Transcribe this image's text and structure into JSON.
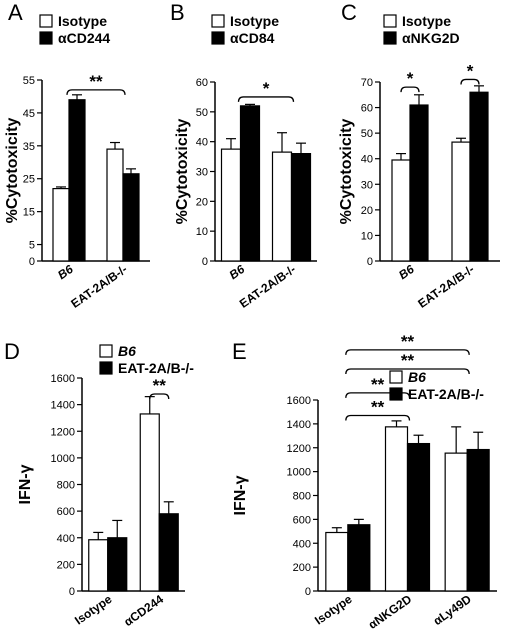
{
  "chart_data": [
    {
      "panel": "A",
      "type": "bar",
      "ylabel": "%Cytotoxicity",
      "ylim": [
        0,
        55
      ],
      "yticks": [
        0,
        5,
        15,
        25,
        35,
        45,
        55
      ],
      "categories": [
        "B6",
        "EAT-2A/B-/-"
      ],
      "category_italic": [
        true,
        false
      ],
      "series": [
        {
          "name": "Isotype",
          "values": [
            22,
            34
          ],
          "errors": [
            0.5,
            2
          ],
          "fill": "#ffffff"
        },
        {
          "name": "αCD244",
          "values": [
            49,
            26.5
          ],
          "errors": [
            1.5,
            1.5
          ],
          "fill": "#000000"
        }
      ],
      "significance": [
        {
          "label": "**",
          "from_cat": 0,
          "to_cat": 1,
          "level": 52
        }
      ]
    },
    {
      "panel": "B",
      "type": "bar",
      "ylabel": "%Cytotoxicity",
      "ylim": [
        0,
        60
      ],
      "yticks": [
        0,
        10,
        20,
        30,
        40,
        50,
        60
      ],
      "categories": [
        "B6",
        "EAT-2A/B-/-"
      ],
      "category_italic": [
        true,
        false
      ],
      "series": [
        {
          "name": "Isotype",
          "values": [
            37.5,
            36.5
          ],
          "errors": [
            3.5,
            6.5
          ],
          "fill": "#ffffff"
        },
        {
          "name": "αCD84",
          "values": [
            52,
            36
          ],
          "errors": [
            0.5,
            3.5
          ],
          "fill": "#000000"
        }
      ],
      "significance": [
        {
          "label": "*",
          "from_cat": 0,
          "to_cat": 1,
          "level": 55
        }
      ]
    },
    {
      "panel": "C",
      "type": "bar",
      "ylabel": "%Cytotoxicity",
      "ylim": [
        0,
        70
      ],
      "yticks": [
        0,
        10,
        20,
        30,
        40,
        50,
        60,
        70
      ],
      "categories": [
        "B6",
        "EAT-2A/B-/-"
      ],
      "category_italic": [
        true,
        false
      ],
      "series": [
        {
          "name": "Isotype",
          "values": [
            39.5,
            46.5
          ],
          "errors": [
            2.5,
            1.5
          ],
          "fill": "#ffffff"
        },
        {
          "name": "αNKG2D",
          "values": [
            61,
            66
          ],
          "errors": [
            4,
            2.5
          ],
          "fill": "#000000"
        }
      ],
      "significance": [
        {
          "label": "*",
          "within_cat": 0,
          "level": 68
        },
        {
          "label": "*",
          "within_cat": 1,
          "level": 71
        }
      ]
    },
    {
      "panel": "D",
      "type": "bar",
      "ylabel": "IFN-γ",
      "ylim": [
        0,
        1600
      ],
      "yticks": [
        0,
        200,
        400,
        600,
        800,
        1000,
        1200,
        1400,
        1600
      ],
      "categories": [
        "Isotype",
        "αCD244"
      ],
      "category_italic": [
        false,
        false
      ],
      "series": [
        {
          "name": "B6",
          "italic": true,
          "values": [
            385,
            1330
          ],
          "errors": [
            55,
            130
          ],
          "fill": "#ffffff"
        },
        {
          "name": "EAT-2A/B-/-",
          "italic": false,
          "values": [
            400,
            580
          ],
          "errors": [
            130,
            90
          ],
          "fill": "#000000"
        }
      ],
      "significance": [
        {
          "label": "**",
          "within_cat": 1,
          "level": 1480
        }
      ]
    },
    {
      "panel": "E",
      "type": "bar",
      "ylabel": "IFN-γ",
      "ylim": [
        0,
        1600
      ],
      "yticks": [
        0,
        200,
        400,
        600,
        800,
        1000,
        1200,
        1400,
        1600
      ],
      "categories": [
        "Isotype",
        "αNKG2D",
        "αLy49D"
      ],
      "category_italic": [
        false,
        false,
        false
      ],
      "series": [
        {
          "name": "B6",
          "italic": true,
          "values": [
            490,
            1375,
            1155
          ],
          "errors": [
            40,
            50,
            220
          ],
          "fill": "#ffffff"
        },
        {
          "name": "EAT-2A/B-/-",
          "italic": false,
          "values": [
            555,
            1235,
            1185
          ],
          "errors": [
            45,
            70,
            145
          ],
          "fill": "#000000"
        }
      ],
      "significance": [
        {
          "label": "**",
          "from_cat": 0,
          "to_cat": 1,
          "level": 1470
        },
        {
          "label": "**",
          "from_cat": 0,
          "to_cat": 1,
          "level": 1660
        },
        {
          "label": "**",
          "from_cat": 0,
          "to_cat": 2,
          "level": 1860
        },
        {
          "label": "**",
          "from_cat": 0,
          "to_cat": 2,
          "level": 2020
        }
      ]
    }
  ]
}
